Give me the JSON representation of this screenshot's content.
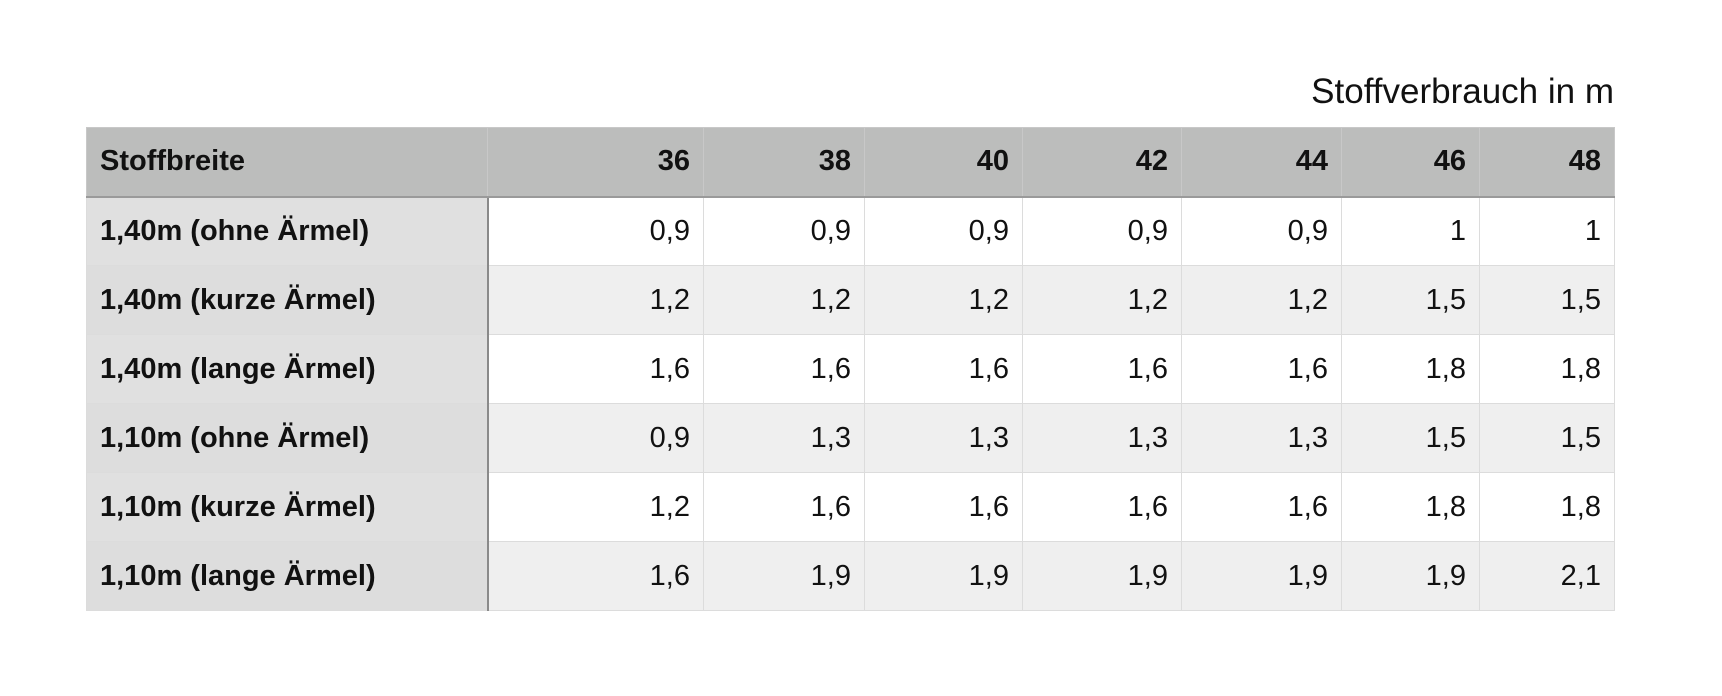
{
  "title": "Stoffverbrauch in m",
  "table": {
    "header": [
      "Stoffbreite",
      "36",
      "38",
      "40",
      "42",
      "44",
      "46",
      "48"
    ],
    "rows": [
      [
        "1,40m (ohne Ärmel)",
        "0,9",
        "0,9",
        "0,9",
        "0,9",
        "0,9",
        "1",
        "1"
      ],
      [
        "1,40m (kurze Ärmel)",
        "1,2",
        "1,2",
        "1,2",
        "1,2",
        "1,2",
        "1,5",
        "1,5"
      ],
      [
        "1,40m (lange Ärmel)",
        "1,6",
        "1,6",
        "1,6",
        "1,6",
        "1,6",
        "1,8",
        "1,8"
      ],
      [
        "1,10m (ohne Ärmel)",
        "0,9",
        "1,3",
        "1,3",
        "1,3",
        "1,3",
        "1,5",
        "1,5"
      ],
      [
        "1,10m (kurze Ärmel)",
        "1,2",
        "1,6",
        "1,6",
        "1,6",
        "1,6",
        "1,8",
        "1,8"
      ],
      [
        "1,10m (lange Ärmel)",
        "1,6",
        "1,9",
        "1,9",
        "1,9",
        "1,9",
        "1,9",
        "2,1"
      ]
    ]
  }
}
